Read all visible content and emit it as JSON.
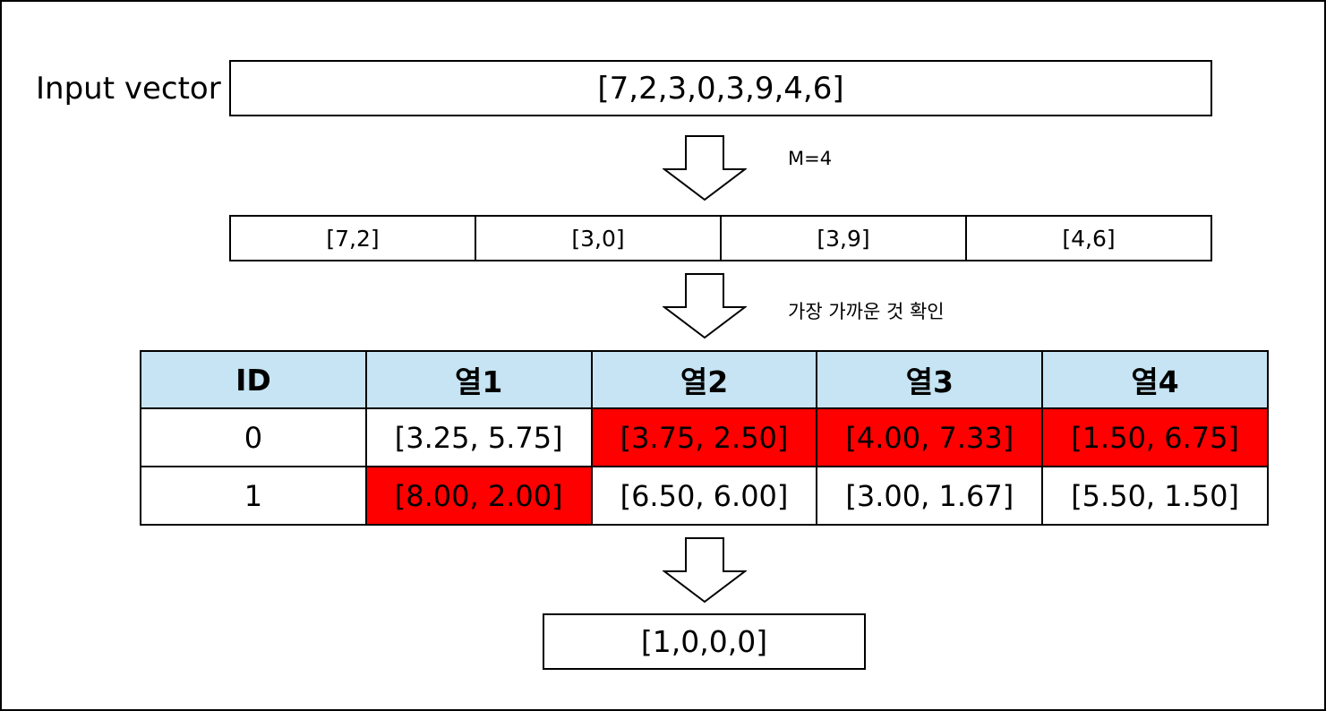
{
  "input": {
    "label": "Input vector",
    "vector": "[7,2,3,0,3,9,4,6]"
  },
  "split_step": {
    "note": "M=4",
    "subvectors": [
      "[7,2]",
      "[3,0]",
      "[3,9]",
      "[4,6]"
    ]
  },
  "match_step": {
    "note": "가장 가까운 것 확인"
  },
  "codebook": {
    "headers": [
      "ID",
      "열1",
      "열2",
      "열3",
      "열4"
    ],
    "rows": [
      {
        "id": "0",
        "cells": [
          "[3.25, 5.75]",
          "[3.75, 2.50]",
          "[4.00, 7.33]",
          "[1.50, 6.75]"
        ],
        "highlight": [
          false,
          true,
          true,
          true
        ]
      },
      {
        "id": "1",
        "cells": [
          "[8.00, 2.00]",
          "[6.50, 6.00]",
          "[3.00, 1.67]",
          "[5.50, 1.50]"
        ],
        "highlight": [
          true,
          false,
          false,
          false
        ]
      }
    ],
    "highlight_color": "#ff0000",
    "header_color": "#c6e4f3"
  },
  "output": {
    "code": "[1,0,0,0]"
  }
}
